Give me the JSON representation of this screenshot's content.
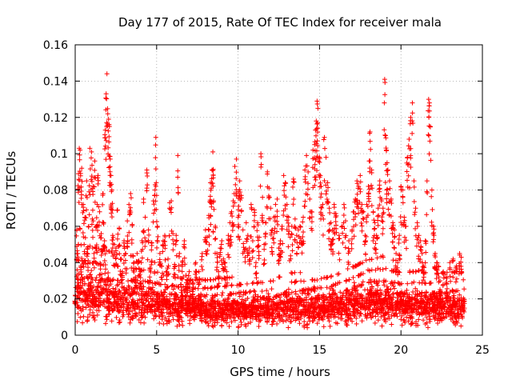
{
  "chart_data": {
    "type": "scatter",
    "title": "Day 177 of 2015, Rate Of TEC Index for receiver mala",
    "xlabel": "GPS time / hours",
    "ylabel": "ROTI / TECUs",
    "xlim": [
      0,
      25
    ],
    "ylim": [
      0,
      0.16
    ],
    "xticks": [
      0,
      5,
      10,
      15,
      20,
      25
    ],
    "yticks": [
      0,
      0.02,
      0.04,
      0.06,
      0.08,
      0.1,
      0.12,
      0.14,
      0.16
    ],
    "xtick_labels": [
      "0",
      "5",
      "10",
      "15",
      "20",
      "25"
    ],
    "ytick_labels": [
      "0",
      "0.02",
      "0.04",
      "0.06",
      "0.08",
      "0.1",
      "0.12",
      "0.14",
      "0.16"
    ],
    "grid": true,
    "marker": "+",
    "color": "#ff0000",
    "series": [
      {
        "name": "ROTI",
        "points": [
          [
            0.0,
            0.022
          ],
          [
            0.1,
            0.058
          ],
          [
            0.15,
            0.045
          ],
          [
            0.2,
            0.089
          ],
          [
            0.25,
            0.103
          ],
          [
            0.3,
            0.102
          ],
          [
            0.35,
            0.038
          ],
          [
            0.4,
            0.092
          ],
          [
            0.45,
            0.031
          ],
          [
            0.5,
            0.072
          ],
          [
            0.55,
            0.05
          ],
          [
            0.6,
            0.065
          ],
          [
            0.7,
            0.085
          ],
          [
            0.75,
            0.048
          ],
          [
            0.8,
            0.041
          ],
          [
            0.85,
            0.079
          ],
          [
            0.9,
            0.103
          ],
          [
            1.0,
            0.101
          ],
          [
            1.05,
            0.064
          ],
          [
            1.1,
            0.082
          ],
          [
            1.15,
            0.045
          ],
          [
            1.2,
            0.096
          ],
          [
            1.3,
            0.06
          ],
          [
            1.35,
            0.072
          ],
          [
            1.4,
            0.088
          ],
          [
            1.5,
            0.068
          ],
          [
            1.55,
            0.039
          ],
          [
            1.6,
            0.056
          ],
          [
            1.7,
            0.078
          ],
          [
            1.75,
            0.062
          ],
          [
            1.8,
            0.052
          ],
          [
            1.85,
            0.113
          ],
          [
            1.9,
            0.133
          ],
          [
            1.95,
            0.144
          ],
          [
            2.0,
            0.122
          ],
          [
            2.05,
            0.119
          ],
          [
            2.1,
            0.115
          ],
          [
            2.15,
            0.097
          ],
          [
            2.2,
            0.088
          ],
          [
            2.25,
            0.08
          ],
          [
            2.3,
            0.055
          ],
          [
            2.4,
            0.05
          ],
          [
            2.5,
            0.048
          ],
          [
            2.6,
            0.069
          ],
          [
            2.7,
            0.059
          ],
          [
            2.8,
            0.042
          ],
          [
            2.9,
            0.035
          ],
          [
            3.0,
            0.052
          ],
          [
            3.1,
            0.045
          ],
          [
            3.2,
            0.063
          ],
          [
            3.3,
            0.072
          ],
          [
            3.4,
            0.078
          ],
          [
            3.5,
            0.061
          ],
          [
            3.6,
            0.04
          ],
          [
            3.7,
            0.032
          ],
          [
            3.8,
            0.045
          ],
          [
            3.9,
            0.041
          ],
          [
            4.0,
            0.035
          ],
          [
            4.1,
            0.052
          ],
          [
            4.2,
            0.075
          ],
          [
            4.3,
            0.065
          ],
          [
            4.4,
            0.091
          ],
          [
            4.5,
            0.058
          ],
          [
            4.6,
            0.037
          ],
          [
            4.7,
            0.051
          ],
          [
            4.8,
            0.074
          ],
          [
            4.9,
            0.08
          ],
          [
            4.95,
            0.109
          ],
          [
            5.0,
            0.077
          ],
          [
            5.05,
            0.06
          ],
          [
            5.2,
            0.045
          ],
          [
            5.3,
            0.038
          ],
          [
            5.4,
            0.052
          ],
          [
            5.5,
            0.055
          ],
          [
            5.6,
            0.035
          ],
          [
            5.7,
            0.042
          ],
          [
            5.8,
            0.073
          ],
          [
            5.9,
            0.074
          ],
          [
            6.0,
            0.056
          ],
          [
            6.1,
            0.039
          ],
          [
            6.2,
            0.055
          ],
          [
            6.3,
            0.099
          ],
          [
            6.4,
            0.045
          ],
          [
            6.5,
            0.028
          ],
          [
            6.6,
            0.041
          ],
          [
            6.7,
            0.052
          ],
          [
            6.8,
            0.033
          ],
          [
            6.9,
            0.03
          ],
          [
            7.0,
            0.035
          ],
          [
            7.2,
            0.03
          ],
          [
            7.4,
            0.04
          ],
          [
            7.6,
            0.035
          ],
          [
            7.8,
            0.045
          ],
          [
            8.0,
            0.058
          ],
          [
            8.1,
            0.054
          ],
          [
            8.2,
            0.066
          ],
          [
            8.3,
            0.084
          ],
          [
            8.35,
            0.081
          ],
          [
            8.4,
            0.091
          ],
          [
            8.45,
            0.101
          ],
          [
            8.5,
            0.074
          ],
          [
            8.6,
            0.06
          ],
          [
            8.7,
            0.045
          ],
          [
            8.8,
            0.035
          ],
          [
            8.9,
            0.048
          ],
          [
            9.0,
            0.052
          ],
          [
            9.1,
            0.042
          ],
          [
            9.2,
            0.04
          ],
          [
            9.3,
            0.035
          ],
          [
            9.4,
            0.055
          ],
          [
            9.5,
            0.062
          ],
          [
            9.6,
            0.068
          ],
          [
            9.7,
            0.074
          ],
          [
            9.8,
            0.093
          ],
          [
            9.9,
            0.097
          ],
          [
            10.0,
            0.079
          ],
          [
            10.05,
            0.066
          ],
          [
            10.1,
            0.085
          ],
          [
            10.2,
            0.077
          ],
          [
            10.3,
            0.058
          ],
          [
            10.4,
            0.047
          ],
          [
            10.5,
            0.062
          ],
          [
            10.6,
            0.055
          ],
          [
            10.7,
            0.048
          ],
          [
            10.8,
            0.072
          ],
          [
            10.9,
            0.052
          ],
          [
            11.0,
            0.069
          ],
          [
            11.1,
            0.04
          ],
          [
            11.2,
            0.062
          ],
          [
            11.3,
            0.054
          ],
          [
            11.4,
            0.1
          ],
          [
            11.5,
            0.076
          ],
          [
            11.6,
            0.05
          ],
          [
            11.7,
            0.062
          ],
          [
            11.8,
            0.09
          ],
          [
            11.9,
            0.081
          ],
          [
            12.0,
            0.07
          ],
          [
            12.1,
            0.058
          ],
          [
            12.2,
            0.065
          ],
          [
            12.3,
            0.072
          ],
          [
            12.4,
            0.075
          ],
          [
            12.5,
            0.048
          ],
          [
            12.6,
            0.052
          ],
          [
            12.7,
            0.06
          ],
          [
            12.8,
            0.088
          ],
          [
            12.9,
            0.084
          ],
          [
            13.0,
            0.072
          ],
          [
            13.1,
            0.065
          ],
          [
            13.2,
            0.054
          ],
          [
            13.3,
            0.06
          ],
          [
            13.4,
            0.086
          ],
          [
            13.5,
            0.064
          ],
          [
            13.6,
            0.055
          ],
          [
            13.7,
            0.058
          ],
          [
            13.8,
            0.06
          ],
          [
            13.9,
            0.052
          ],
          [
            14.0,
            0.065
          ],
          [
            14.1,
            0.091
          ],
          [
            14.2,
            0.099
          ],
          [
            14.3,
            0.09
          ],
          [
            14.4,
            0.075
          ],
          [
            14.5,
            0.068
          ],
          [
            14.6,
            0.102
          ],
          [
            14.7,
            0.105
          ],
          [
            14.75,
            0.113
          ],
          [
            14.8,
            0.118
          ],
          [
            14.85,
            0.129
          ],
          [
            14.9,
            0.125
          ],
          [
            15.0,
            0.098
          ],
          [
            15.05,
            0.088
          ],
          [
            15.1,
            0.082
          ],
          [
            15.2,
            0.072
          ],
          [
            15.3,
            0.109
          ],
          [
            15.4,
            0.098
          ],
          [
            15.5,
            0.084
          ],
          [
            15.6,
            0.07
          ],
          [
            15.7,
            0.062
          ],
          [
            15.8,
            0.058
          ],
          [
            15.9,
            0.072
          ],
          [
            16.0,
            0.067
          ],
          [
            16.2,
            0.055
          ],
          [
            16.4,
            0.06
          ],
          [
            16.5,
            0.072
          ],
          [
            16.6,
            0.063
          ],
          [
            16.8,
            0.052
          ],
          [
            17.0,
            0.058
          ],
          [
            17.1,
            0.068
          ],
          [
            17.2,
            0.075
          ],
          [
            17.3,
            0.085
          ],
          [
            17.4,
            0.082
          ],
          [
            17.5,
            0.088
          ],
          [
            17.6,
            0.072
          ],
          [
            17.7,
            0.068
          ],
          [
            17.8,
            0.055
          ],
          [
            17.9,
            0.072
          ],
          [
            18.0,
            0.082
          ],
          [
            18.05,
            0.096
          ],
          [
            18.1,
            0.112
          ],
          [
            18.2,
            0.091
          ],
          [
            18.3,
            0.068
          ],
          [
            18.4,
            0.062
          ],
          [
            18.5,
            0.055
          ],
          [
            18.6,
            0.07
          ],
          [
            18.7,
            0.085
          ],
          [
            18.8,
            0.075
          ],
          [
            18.9,
            0.07
          ],
          [
            19.0,
            0.141
          ],
          [
            19.05,
            0.11
          ],
          [
            19.1,
            0.102
          ],
          [
            19.15,
            0.095
          ],
          [
            19.2,
            0.091
          ],
          [
            19.3,
            0.085
          ],
          [
            19.4,
            0.075
          ],
          [
            19.5,
            0.062
          ],
          [
            19.6,
            0.058
          ],
          [
            19.7,
            0.045
          ],
          [
            19.8,
            0.04
          ],
          [
            19.9,
            0.055
          ],
          [
            20.0,
            0.082
          ],
          [
            20.1,
            0.08
          ],
          [
            20.2,
            0.065
          ],
          [
            20.3,
            0.06
          ],
          [
            20.4,
            0.098
          ],
          [
            20.5,
            0.108
          ],
          [
            20.6,
            0.12
          ],
          [
            20.7,
            0.128
          ],
          [
            20.8,
            0.085
          ],
          [
            20.9,
            0.07
          ],
          [
            21.0,
            0.062
          ],
          [
            21.1,
            0.055
          ],
          [
            21.2,
            0.052
          ],
          [
            21.3,
            0.045
          ],
          [
            21.4,
            0.038
          ],
          [
            21.5,
            0.052
          ],
          [
            21.6,
            0.085
          ],
          [
            21.7,
            0.13
          ],
          [
            21.75,
            0.128
          ],
          [
            21.8,
            0.115
          ],
          [
            21.9,
            0.08
          ],
          [
            22.0,
            0.06
          ],
          [
            22.1,
            0.045
          ],
          [
            22.2,
            0.04
          ],
          [
            22.3,
            0.038
          ],
          [
            22.4,
            0.03
          ],
          [
            22.6,
            0.035
          ],
          [
            22.8,
            0.032
          ],
          [
            23.0,
            0.04
          ],
          [
            23.2,
            0.042
          ],
          [
            23.4,
            0.038
          ],
          [
            23.6,
            0.045
          ],
          [
            23.7,
            0.043
          ]
        ],
        "dense_band": {
          "x_range": [
            0,
            23.9
          ],
          "y_center_by_hour": [
            0.024,
            0.022,
            0.02,
            0.019,
            0.018,
            0.017,
            0.016,
            0.015,
            0.014,
            0.014,
            0.014,
            0.014,
            0.014,
            0.015,
            0.015,
            0.015,
            0.016,
            0.017,
            0.018,
            0.018,
            0.016,
            0.016,
            0.015,
            0.015,
            0.015
          ],
          "y_spread_by_hour": [
            0.014,
            0.013,
            0.012,
            0.011,
            0.01,
            0.009,
            0.008,
            0.007,
            0.007,
            0.007,
            0.007,
            0.007,
            0.007,
            0.008,
            0.008,
            0.008,
            0.008,
            0.009,
            0.01,
            0.01,
            0.009,
            0.009,
            0.008,
            0.008,
            0.008
          ],
          "y_min": 0.004
        }
      }
    ]
  }
}
